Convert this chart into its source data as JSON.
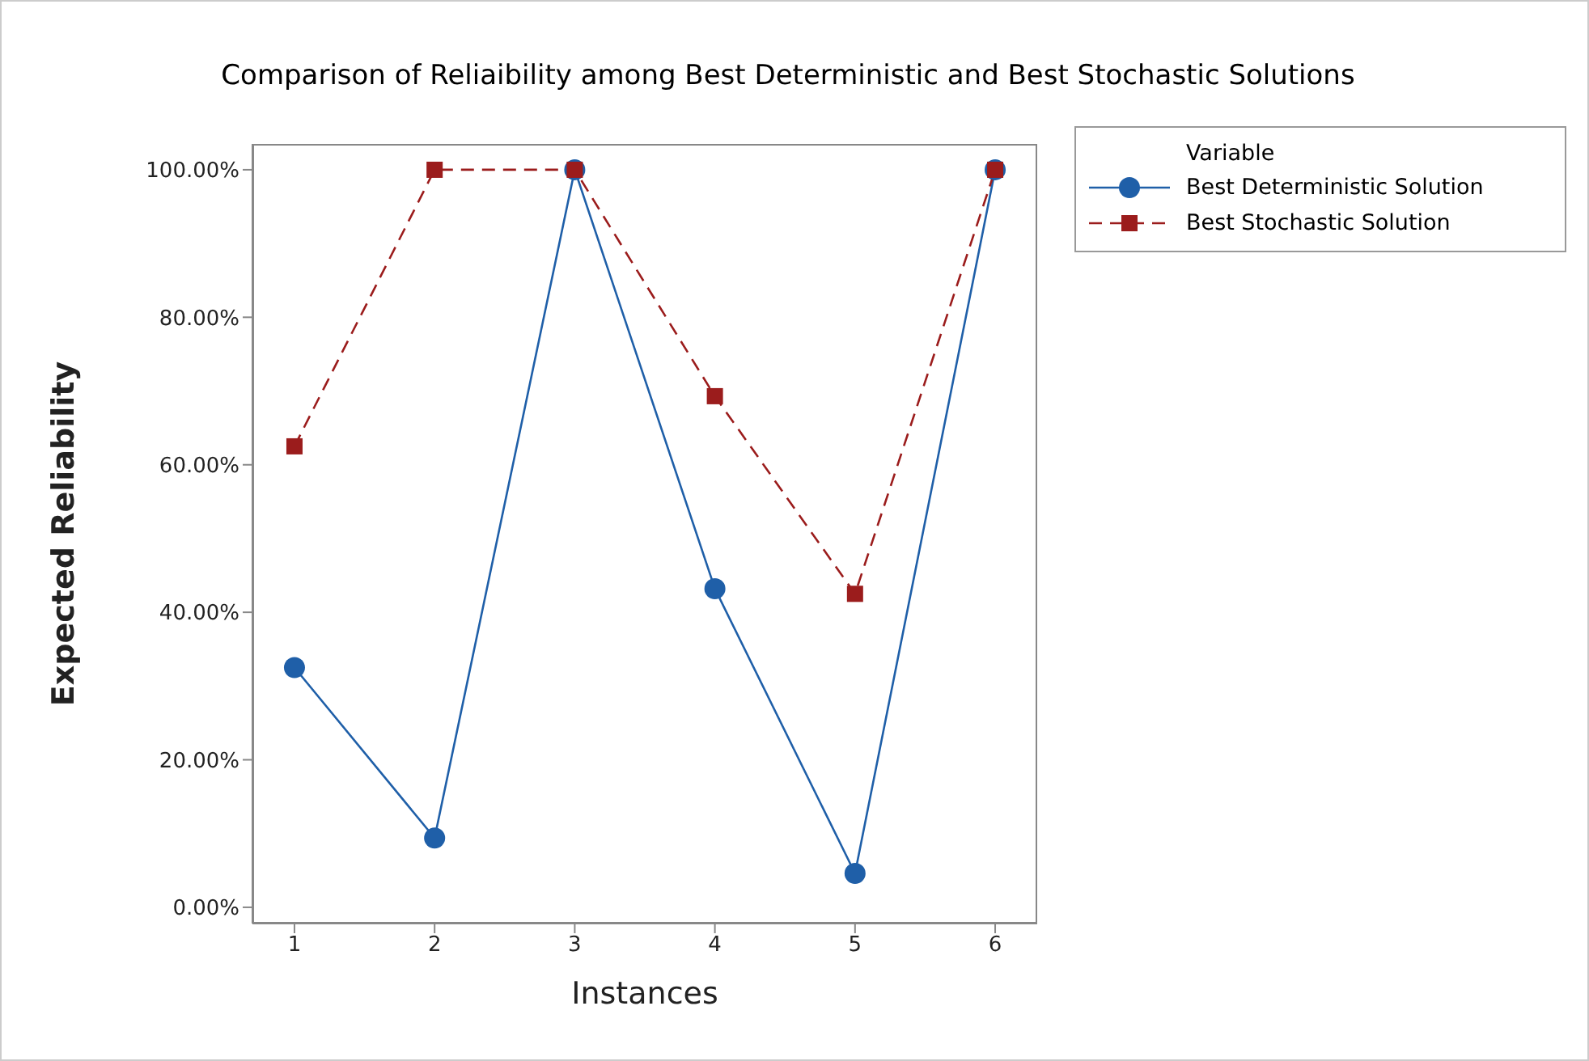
{
  "chart_data": {
    "type": "line",
    "title": "Comparison of Reliaibility among Best Deterministic and Best Stochastic Solutions",
    "xlabel": "Instances",
    "ylabel": "Expected Reliability",
    "legend_title": "Variable",
    "legend": "top right",
    "grid": false,
    "x": [
      1,
      2,
      3,
      4,
      5,
      6
    ],
    "xlim": [
      0.7,
      6.3
    ],
    "xticks": [
      1,
      2,
      3,
      4,
      5,
      6
    ],
    "ylim": [
      -2.2,
      103.5
    ],
    "yticks": [
      {
        "value": 0,
        "label": "0.00%"
      },
      {
        "value": 20,
        "label": "20.00%"
      },
      {
        "value": 40,
        "label": "40.00%"
      },
      {
        "value": 60,
        "label": "60.00%"
      },
      {
        "value": 80,
        "label": "80.00%"
      },
      {
        "value": 100,
        "label": "100.00%"
      }
    ],
    "series": [
      {
        "name": "Best Deterministic Solution",
        "color": "#1f5fa8",
        "marker": "circle",
        "line_style": "solid",
        "values": [
          32.5,
          9.4,
          100,
          43.2,
          4.6,
          100
        ]
      },
      {
        "name": "Best Stochastic Solution",
        "color": "#9b1c1c",
        "marker": "square",
        "line_style": "dashed",
        "values": [
          62.5,
          100,
          100,
          69.3,
          42.5,
          100
        ]
      }
    ]
  }
}
